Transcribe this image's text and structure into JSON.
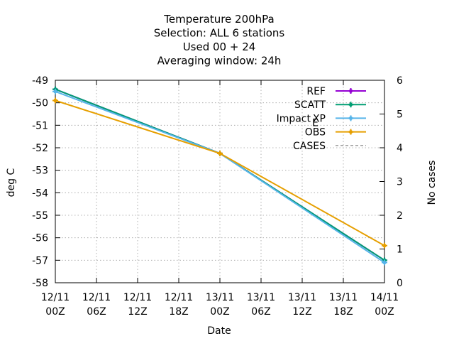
{
  "chart_data": {
    "type": "line",
    "title_lines": [
      "Temperature 200hPa",
      "Selection: ALL      6 stations",
      "Used  00 + 24",
      "Averaging window: 24h"
    ],
    "xlabel": "Date",
    "ylabel": "deg C",
    "y2label": "No cases",
    "x": [
      "12/11 00Z",
      "12/11 06Z",
      "12/11 12Z",
      "12/11 18Z",
      "13/11 00Z",
      "13/11 06Z",
      "13/11 12Z",
      "13/11 18Z",
      "14/11 00Z"
    ],
    "x_tick_labels": [
      [
        "12/11",
        "00Z"
      ],
      [
        "12/11",
        "06Z"
      ],
      [
        "12/11",
        "12Z"
      ],
      [
        "12/11",
        "18Z"
      ],
      [
        "13/11",
        "00Z"
      ],
      [
        "13/11",
        "06Z"
      ],
      [
        "13/11",
        "12Z"
      ],
      [
        "13/11",
        "18Z"
      ],
      [
        "14/11",
        "00Z"
      ]
    ],
    "ylim": [
      -58,
      -49
    ],
    "y_ticks": [
      "-49",
      "-50",
      "-51",
      "-52",
      "-53",
      "-54",
      "-55",
      "-56",
      "-57",
      "-58"
    ],
    "y2lim": [
      0,
      6
    ],
    "y2_ticks": [
      "6",
      "5",
      "4",
      "3",
      "2",
      "1",
      "0"
    ],
    "grid": true,
    "legend_position": "top-right",
    "series": [
      {
        "name": "REF",
        "color": "#9400d3",
        "axis": "y1",
        "marker": "plus",
        "points": [
          [
            "12/11 00Z",
            -49.4
          ],
          [
            "13/11 00Z",
            -52.25
          ],
          [
            "14/11 00Z",
            -57.0
          ]
        ]
      },
      {
        "name": "SCATT",
        "color": "#009e73",
        "axis": "y1",
        "marker": "plus",
        "points": [
          [
            "12/11 00Z",
            -49.4
          ],
          [
            "13/11 00Z",
            -52.25
          ],
          [
            "14/11 00Z",
            -57.0
          ]
        ]
      },
      {
        "name": "Impact_EXP",
        "label_main": "Impact",
        "label_sub": "E",
        "label_rest": "XP",
        "color": "#56b4e9",
        "axis": "y1",
        "marker": "plus",
        "points": [
          [
            "12/11 00Z",
            -49.5
          ],
          [
            "13/11 00Z",
            -52.25
          ],
          [
            "14/11 00Z",
            -57.1
          ]
        ]
      },
      {
        "name": "OBS",
        "color": "#e69f00",
        "axis": "y1",
        "marker": "plus",
        "points": [
          [
            "12/11 00Z",
            -49.9
          ],
          [
            "13/11 00Z",
            -52.25
          ],
          [
            "14/11 00Z",
            -56.35
          ]
        ]
      },
      {
        "name": "CASES",
        "color": "#a0a0a0",
        "axis": "y2",
        "marker": "none",
        "dashed": true,
        "points": []
      }
    ]
  }
}
